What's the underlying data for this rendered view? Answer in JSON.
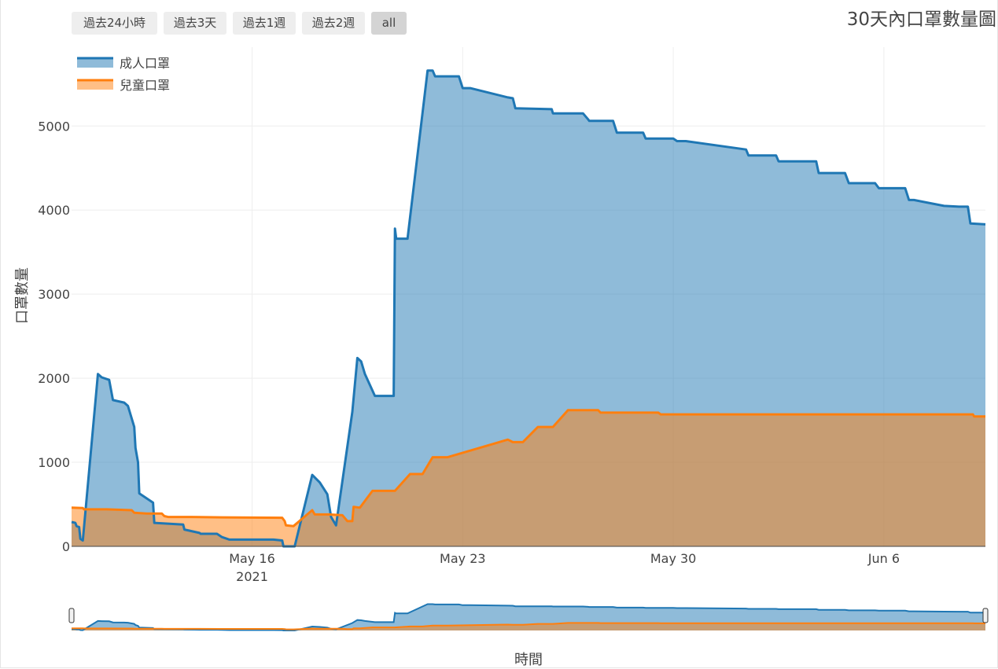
{
  "range_buttons": [
    {
      "label": "過去24小時",
      "active": false
    },
    {
      "label": "過去3天",
      "active": false
    },
    {
      "label": "過去1週",
      "active": false
    },
    {
      "label": "過去2週",
      "active": false
    },
    {
      "label": "all",
      "active": true
    }
  ],
  "chart_data": {
    "type": "area",
    "title": "30天內口罩數量圖",
    "xlabel": "時間",
    "ylabel": "口罩數量",
    "x_range": [
      "2021-05-10",
      "2021-06-09T09:00"
    ],
    "ylim": [
      0,
      5800
    ],
    "y_ticks": [
      0,
      1000,
      2000,
      3000,
      4000,
      5000
    ],
    "x_ticks": [
      {
        "date": "2021-05-16",
        "label": "May 16",
        "sublabel": "2021"
      },
      {
        "date": "2021-05-23",
        "label": "May 23",
        "sublabel": ""
      },
      {
        "date": "2021-05-30",
        "label": "May 30",
        "sublabel": ""
      },
      {
        "date": "2021-06-06",
        "label": "Jun 6",
        "sublabel": ""
      }
    ],
    "grid": true,
    "legend_position": "top-left",
    "rangeslider": true,
    "series": [
      {
        "name": "成人口罩",
        "color": "#1f77b4",
        "fill": "rgba(31,119,180,0.5)",
        "points": [
          [
            "2021-05-10T00:00",
            290
          ],
          [
            "2021-05-10T03:00",
            280
          ],
          [
            "2021-05-10T04:00",
            240
          ],
          [
            "2021-05-10T06:00",
            230
          ],
          [
            "2021-05-10T07:00",
            90
          ],
          [
            "2021-05-10T09:00",
            70
          ],
          [
            "2021-05-10T21:00",
            2050
          ],
          [
            "2021-05-11T00:00",
            2010
          ],
          [
            "2021-05-11T06:00",
            1980
          ],
          [
            "2021-05-11T09:00",
            1740
          ],
          [
            "2021-05-11T18:00",
            1710
          ],
          [
            "2021-05-11T21:00",
            1670
          ],
          [
            "2021-05-12T02:00",
            1420
          ],
          [
            "2021-05-12T03:00",
            1170
          ],
          [
            "2021-05-12T05:00",
            1000
          ],
          [
            "2021-05-12T06:00",
            630
          ],
          [
            "2021-05-12T17:00",
            520
          ],
          [
            "2021-05-12T18:00",
            280
          ],
          [
            "2021-05-13T17:00",
            260
          ],
          [
            "2021-05-13T18:00",
            200
          ],
          [
            "2021-05-14T06:00",
            160
          ],
          [
            "2021-05-14T07:00",
            150
          ],
          [
            "2021-05-14T20:00",
            150
          ],
          [
            "2021-05-15T00:00",
            110
          ],
          [
            "2021-05-15T06:00",
            80
          ],
          [
            "2021-05-16T17:00",
            80
          ],
          [
            "2021-05-17T00:00",
            70
          ],
          [
            "2021-05-17T01:00",
            0
          ],
          [
            "2021-05-17T10:00",
            0
          ],
          [
            "2021-05-18T00:00",
            850
          ],
          [
            "2021-05-18T06:00",
            760
          ],
          [
            "2021-05-18T12:00",
            620
          ],
          [
            "2021-05-18T15:00",
            350
          ],
          [
            "2021-05-18T19:00",
            250
          ],
          [
            "2021-05-19T08:00",
            1600
          ],
          [
            "2021-05-19T12:00",
            2240
          ],
          [
            "2021-05-19T15:00",
            2200
          ],
          [
            "2021-05-19T18:00",
            2050
          ],
          [
            "2021-05-20T02:00",
            1790
          ],
          [
            "2021-05-20T17:00",
            1790
          ],
          [
            "2021-05-20T18:00",
            3780
          ],
          [
            "2021-05-20T19:00",
            3660
          ],
          [
            "2021-05-21T04:00",
            3660
          ],
          [
            "2021-05-21T20:00",
            5660
          ],
          [
            "2021-05-22T00:00",
            5660
          ],
          [
            "2021-05-22T02:00",
            5590
          ],
          [
            "2021-05-22T21:00",
            5590
          ],
          [
            "2021-05-23T00:00",
            5450
          ],
          [
            "2021-05-23T06:00",
            5450
          ],
          [
            "2021-05-24T12:00",
            5340
          ],
          [
            "2021-05-24T16:00",
            5330
          ],
          [
            "2021-05-24T18:00",
            5210
          ],
          [
            "2021-05-25T23:00",
            5200
          ],
          [
            "2021-05-26T00:00",
            5150
          ],
          [
            "2021-05-27T00:00",
            5150
          ],
          [
            "2021-05-27T04:00",
            5080
          ],
          [
            "2021-05-27T05:00",
            5060
          ],
          [
            "2021-05-28T00:00",
            5060
          ],
          [
            "2021-05-28T03:00",
            4920
          ],
          [
            "2021-05-29T00:00",
            4920
          ],
          [
            "2021-05-29T02:00",
            4850
          ],
          [
            "2021-05-30T00:00",
            4850
          ],
          [
            "2021-05-30T03:00",
            4820
          ],
          [
            "2021-05-30T10:00",
            4820
          ],
          [
            "2021-06-01T10:00",
            4720
          ],
          [
            "2021-06-01T12:00",
            4650
          ],
          [
            "2021-06-02T10:00",
            4650
          ],
          [
            "2021-06-02T12:00",
            4580
          ],
          [
            "2021-06-03T18:00",
            4580
          ],
          [
            "2021-06-03T20:00",
            4440
          ],
          [
            "2021-06-04T17:00",
            4440
          ],
          [
            "2021-06-04T20:00",
            4320
          ],
          [
            "2021-06-05T17:00",
            4320
          ],
          [
            "2021-06-05T20:00",
            4260
          ],
          [
            "2021-06-06T17:00",
            4260
          ],
          [
            "2021-06-06T20:00",
            4120
          ],
          [
            "2021-06-07T00:00",
            4120
          ],
          [
            "2021-06-08T00:00",
            4050
          ],
          [
            "2021-06-08T12:00",
            4040
          ],
          [
            "2021-06-08T19:00",
            4040
          ],
          [
            "2021-06-08T21:00",
            3840
          ],
          [
            "2021-06-09T09:00",
            3830
          ]
        ]
      },
      {
        "name": "兒童口罩",
        "color": "#ff7f0e",
        "fill": "rgba(255,127,14,0.5)",
        "points": [
          [
            "2021-05-10T00:00",
            460
          ],
          [
            "2021-05-10T09:00",
            455
          ],
          [
            "2021-05-10T10:00",
            440
          ],
          [
            "2021-05-11T04:00",
            440
          ],
          [
            "2021-05-12T00:00",
            430
          ],
          [
            "2021-05-12T02:00",
            400
          ],
          [
            "2021-05-12T12:00",
            390
          ],
          [
            "2021-05-13T00:00",
            390
          ],
          [
            "2021-05-13T02:00",
            360
          ],
          [
            "2021-05-13T05:00",
            350
          ],
          [
            "2021-05-14T00:00",
            350
          ],
          [
            "2021-05-15T00:00",
            345
          ],
          [
            "2021-05-17T00:00",
            340
          ],
          [
            "2021-05-17T02:00",
            300
          ],
          [
            "2021-05-17T03:00",
            250
          ],
          [
            "2021-05-17T09:00",
            240
          ],
          [
            "2021-05-18T00:00",
            430
          ],
          [
            "2021-05-18T02:00",
            380
          ],
          [
            "2021-05-18T13:00",
            380
          ],
          [
            "2021-05-19T00:00",
            370
          ],
          [
            "2021-05-19T04:00",
            300
          ],
          [
            "2021-05-19T08:00",
            300
          ],
          [
            "2021-05-19T09:00",
            470
          ],
          [
            "2021-05-19T14:00",
            460
          ],
          [
            "2021-05-20T00:00",
            660
          ],
          [
            "2021-05-20T18:00",
            660
          ],
          [
            "2021-05-21T06:00",
            860
          ],
          [
            "2021-05-21T16:00",
            860
          ],
          [
            "2021-05-22T00:00",
            1060
          ],
          [
            "2021-05-22T12:00",
            1060
          ],
          [
            "2021-05-24T12:00",
            1270
          ],
          [
            "2021-05-24T16:00",
            1240
          ],
          [
            "2021-05-25T00:00",
            1240
          ],
          [
            "2021-05-25T12:00",
            1420
          ],
          [
            "2021-05-26T00:00",
            1420
          ],
          [
            "2021-05-26T12:00",
            1620
          ],
          [
            "2021-05-27T12:00",
            1620
          ],
          [
            "2021-05-27T14:00",
            1590
          ],
          [
            "2021-05-29T12:00",
            1590
          ],
          [
            "2021-05-29T14:00",
            1570
          ],
          [
            "2021-06-08T23:00",
            1570
          ],
          [
            "2021-06-09T00:00",
            1545
          ],
          [
            "2021-06-09T09:00",
            1545
          ]
        ]
      }
    ]
  }
}
